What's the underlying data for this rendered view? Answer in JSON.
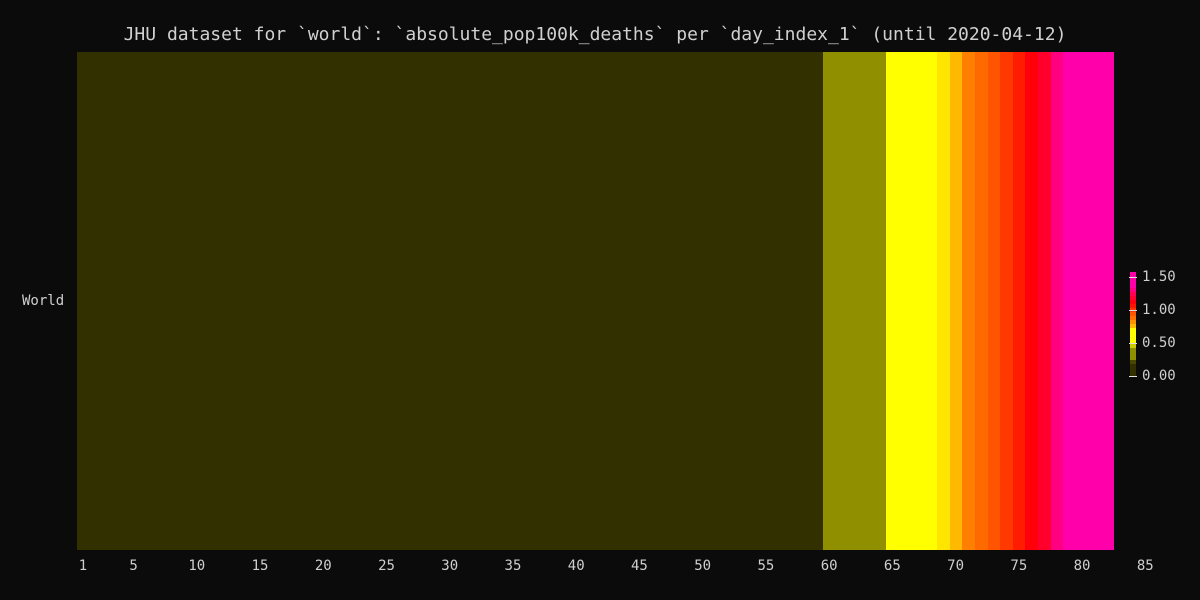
{
  "chart_data": {
    "type": "heatmap",
    "title": "JHU dataset for `world`: `absolute_pop100k_deaths` per `day_index_1` (until 2020-04-12)",
    "rows": [
      "World"
    ],
    "x_range": [
      1,
      83
    ],
    "xticks": [
      "1",
      "5",
      "10",
      "15",
      "20",
      "25",
      "30",
      "35",
      "40",
      "45",
      "50",
      "55",
      "60",
      "65",
      "70",
      "75",
      "80",
      "85"
    ],
    "values": [
      0.0,
      0.0,
      0.0,
      0.0,
      0.0,
      0.0,
      0.0,
      0.0,
      0.0,
      0.0,
      0.0,
      0.0,
      0.0,
      0.0,
      0.0,
      0.0,
      0.0,
      0.0,
      0.0,
      0.0,
      0.0,
      0.0,
      0.0,
      0.0,
      0.0,
      0.0,
      0.0,
      0.0,
      0.0,
      0.0,
      0.0,
      0.0,
      0.0,
      0.0,
      0.0,
      0.0,
      0.0,
      0.0,
      0.0,
      0.0,
      0.0,
      0.0,
      0.0,
      0.0,
      0.0,
      0.0,
      0.0,
      0.0,
      0.0,
      0.0,
      0.0,
      0.0,
      0.0,
      0.0,
      0.0,
      0.0,
      0.0,
      0.0,
      0.0,
      0.26,
      0.28,
      0.3,
      0.32,
      0.35,
      0.55,
      0.58,
      0.62,
      0.66,
      0.72,
      0.76,
      0.85,
      0.9,
      0.95,
      1.0,
      1.05,
      1.12,
      1.18,
      1.3,
      1.4,
      1.46,
      1.52,
      1.57
    ],
    "colorbar": {
      "min": 0.0,
      "max": 1.58,
      "ticks": [
        "0.00",
        "0.50",
        "1.00",
        "1.50"
      ],
      "tick_values": [
        0.0,
        0.5,
        1.0,
        1.5
      ],
      "stops": [
        {
          "v": 0.0,
          "color": "#333000"
        },
        {
          "v": 0.2,
          "color": "#333000"
        },
        {
          "v": 0.25,
          "color": "#8f8f00"
        },
        {
          "v": 0.4,
          "color": "#8f8f00"
        },
        {
          "v": 0.5,
          "color": "#ffff00"
        },
        {
          "v": 0.7,
          "color": "#ffff00"
        },
        {
          "v": 0.75,
          "color": "#ffbf00"
        },
        {
          "v": 0.85,
          "color": "#ff7f00"
        },
        {
          "v": 0.95,
          "color": "#ff5500"
        },
        {
          "v": 1.1,
          "color": "#ff0000"
        },
        {
          "v": 1.25,
          "color": "#ff0055"
        },
        {
          "v": 1.35,
          "color": "#ff00aa"
        },
        {
          "v": 1.58,
          "color": "#ff00aa"
        }
      ]
    }
  }
}
